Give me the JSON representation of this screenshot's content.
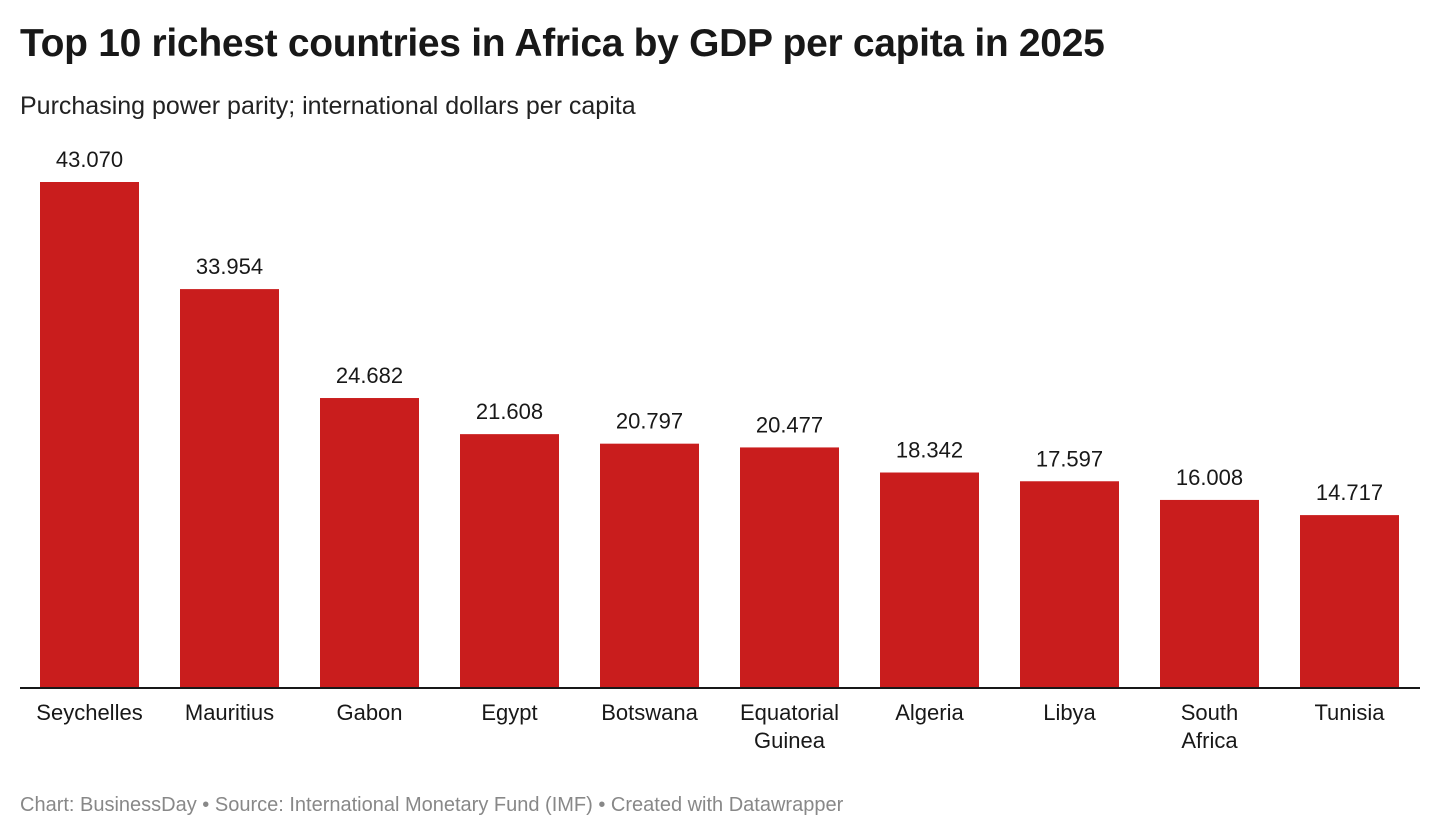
{
  "title": "Top 10 richest countries in Africa by GDP per capita in 2025",
  "subtitle": "Purchasing power parity; international dollars per capita",
  "footer": "Chart: BusinessDay • Source: International Monetary Fund (IMF) • Created with Datawrapper",
  "colors": {
    "bar": "#c91d1d",
    "baseline": "#181818"
  },
  "chart_data": {
    "type": "bar",
    "title": "Top 10 richest countries in Africa by GDP per capita in 2025",
    "subtitle": "Purchasing power parity; international dollars per capita",
    "categories": [
      "Seychelles",
      "Mauritius",
      "Gabon",
      "Egypt",
      "Botswana",
      "Equatorial Guinea",
      "Algeria",
      "Libya",
      "South Africa",
      "Tunisia"
    ],
    "category_lines": [
      [
        "Seychelles"
      ],
      [
        "Mauritius"
      ],
      [
        "Gabon"
      ],
      [
        "Egypt"
      ],
      [
        "Botswana"
      ],
      [
        "Equatorial",
        "Guinea"
      ],
      [
        "Algeria"
      ],
      [
        "Libya"
      ],
      [
        "South",
        "Africa"
      ],
      [
        "Tunisia"
      ]
    ],
    "values": [
      43070,
      33954,
      24682,
      21608,
      20797,
      20477,
      18342,
      17597,
      16008,
      14717
    ],
    "value_labels": [
      "43.070",
      "33.954",
      "24.682",
      "21.608",
      "20.797",
      "20.477",
      "18.342",
      "17.597",
      "16.008",
      "14.717"
    ],
    "ylim": [
      0,
      43070
    ],
    "grid": false,
    "legend": "none"
  }
}
